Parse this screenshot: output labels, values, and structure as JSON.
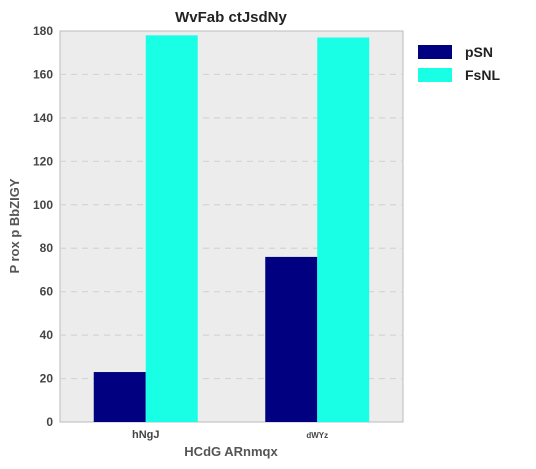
{
  "chart_data": {
    "type": "bar",
    "title": "WvFab ctJsdNy",
    "xlabel": "HCdG ARnmqx",
    "ylabel": "P rox p BbZIGY",
    "categories": [
      "hNgJ",
      "dWYz"
    ],
    "series": [
      {
        "name": "pSN",
        "values": [
          23,
          76
        ],
        "color": "#000080"
      },
      {
        "name": "FsNL",
        "values": [
          178,
          177
        ],
        "color": "#19FFE6"
      }
    ],
    "ylim": [
      0,
      180
    ],
    "yticks": [
      0,
      20,
      40,
      60,
      80,
      100,
      120,
      140,
      160,
      180
    ],
    "grid": true,
    "grid_axis": "y",
    "legend_position": "outside-right-top",
    "plot_background": "#ECECEC"
  }
}
